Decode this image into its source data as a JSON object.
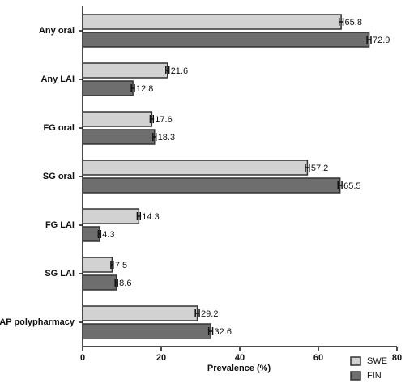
{
  "chart_data": {
    "type": "bar",
    "orientation": "horizontal",
    "x_label": "Prevalence (%)",
    "categories": [
      "Any oral",
      "Any LAI",
      "FG oral",
      "SG oral",
      "FG LAI",
      "SG LAI",
      "AP polypharmacy"
    ],
    "series": [
      {
        "name": "SWE",
        "color": "#d2d2d2",
        "values": [
          65.8,
          21.6,
          17.6,
          57.2,
          14.3,
          7.5,
          29.2
        ],
        "errors": [
          0.5,
          0.4,
          0.4,
          0.5,
          0.4,
          0.3,
          0.5
        ]
      },
      {
        "name": "FIN",
        "color": "#6e6e6e",
        "values": [
          72.9,
          12.8,
          18.3,
          65.5,
          4.3,
          8.6,
          32.6
        ],
        "errors": [
          0.5,
          0.4,
          0.4,
          0.5,
          0.3,
          0.3,
          0.5
        ]
      }
    ],
    "xlim": [
      0,
      80
    ],
    "xticks": [
      0,
      20,
      40,
      60,
      80
    ],
    "legend": "bottom-right"
  }
}
